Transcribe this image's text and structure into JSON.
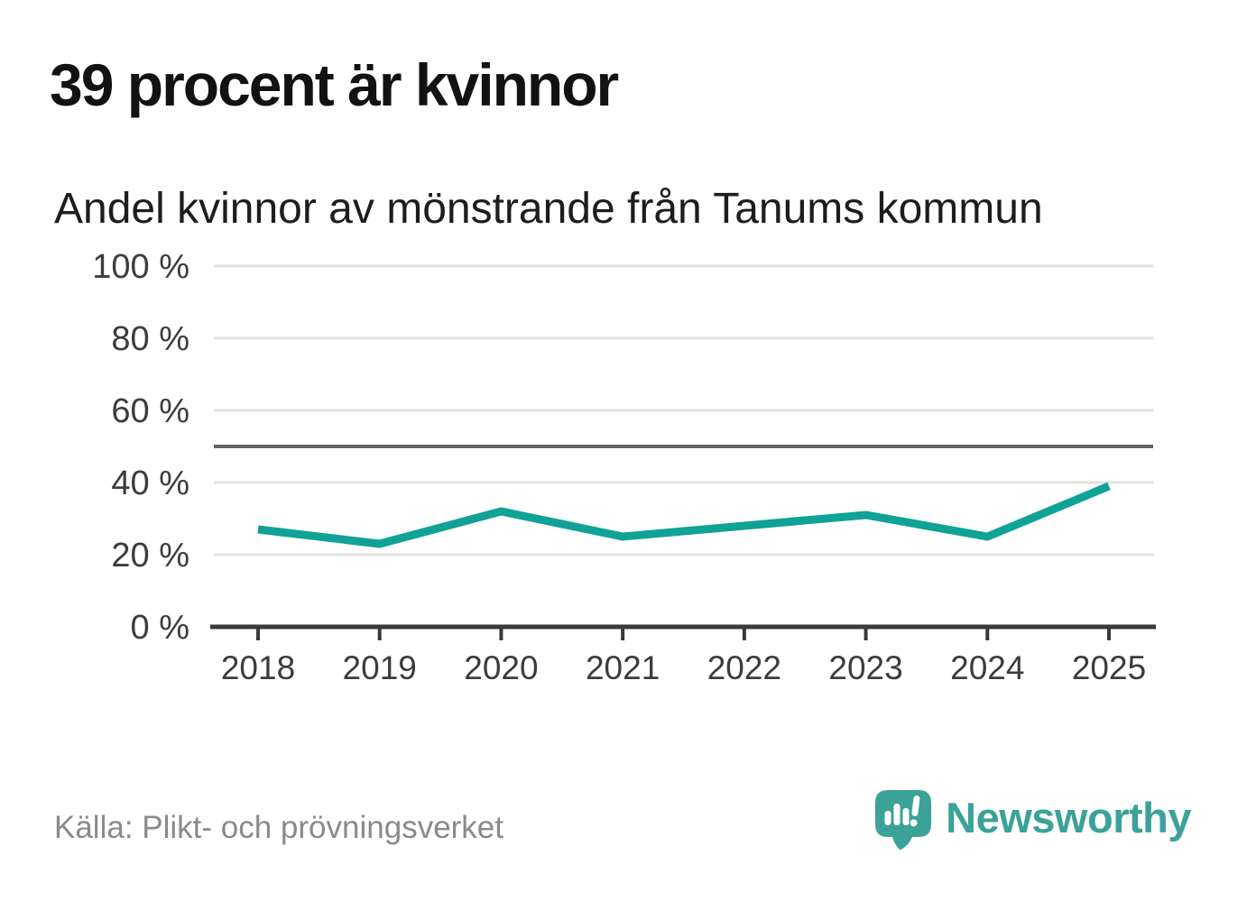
{
  "page": {
    "background": "#ffffff"
  },
  "header": {
    "title": "39 procent är kvinnor",
    "subtitle": "Andel kvinnor av mönstrande från Tanums kommun"
  },
  "chart_data": {
    "type": "line",
    "title": "39 procent är kvinnor",
    "subtitle": "Andel kvinnor av mönstrande från Tanums kommun",
    "x": [
      2018,
      2019,
      2020,
      2021,
      2022,
      2023,
      2024,
      2025
    ],
    "xtick_labels": [
      "2018",
      "2019",
      "2020",
      "2021",
      "2022",
      "2023",
      "2024",
      "2025"
    ],
    "series": [
      {
        "name": "Andel kvinnor av mönstrande",
        "values": [
          27,
          23,
          32,
          25,
          28,
          31,
          25,
          39
        ]
      }
    ],
    "unit": "%",
    "ylim": [
      0,
      100
    ],
    "yticks": [
      0,
      20,
      40,
      60,
      80,
      100
    ],
    "ytick_labels": [
      "0 %",
      "20 %",
      "40 %",
      "60 %",
      "80 %",
      "100 %"
    ],
    "reference_line": {
      "value": 50
    },
    "grid": true,
    "legend": "none",
    "line_color": "#10a296"
  },
  "footer": {
    "source": "Källa: Plikt- och prövningsverket",
    "brand": "Newsworthy"
  },
  "icons": {
    "logo": "newsworthy-speech-bubble-bar-chart-icon"
  },
  "colors": {
    "page_bg": "#ffffff",
    "accent": "#10a296",
    "grid": "#e2e2e2",
    "axis": "#3a3a3a",
    "reference": "#666666",
    "tick_text": "#3c3c3c",
    "title_text": "#121212",
    "subtitle_text": "#1d1d1d",
    "source_text": "#8a8a8a",
    "brand": "#3aa298"
  }
}
